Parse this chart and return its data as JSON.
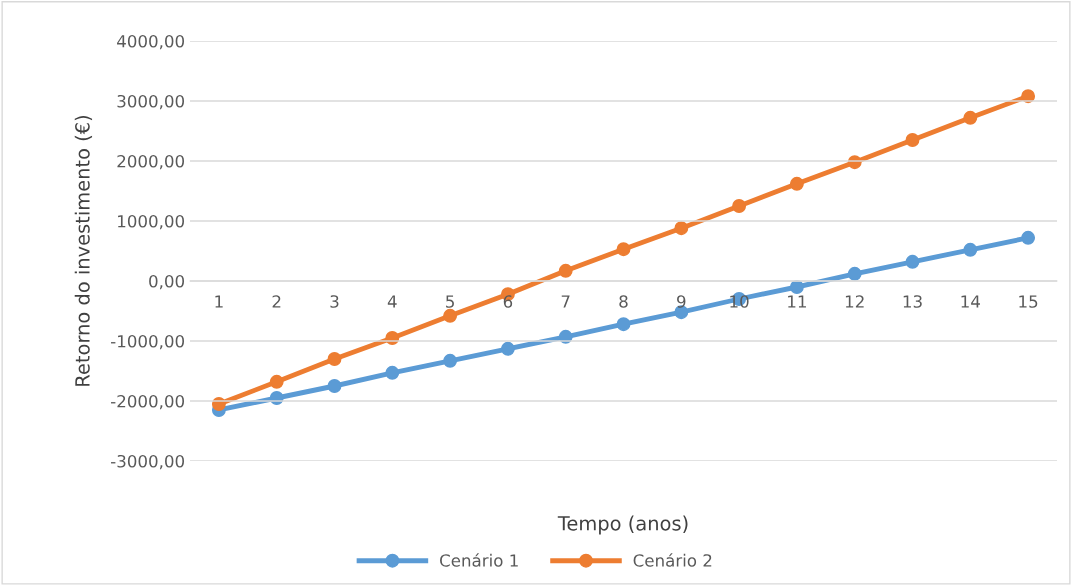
{
  "chart_data": {
    "type": "line",
    "xlabel": "Tempo (anos)",
    "ylabel": "Retorno do investimento (€)",
    "categories": [
      "1",
      "2",
      "3",
      "4",
      "5",
      "6",
      "7",
      "8",
      "9",
      "10",
      "11",
      "12",
      "13",
      "14",
      "15"
    ],
    "series": [
      {
        "name": "Cenário 1",
        "color": "#5b9bd5",
        "values": [
          -2150,
          -1950,
          -1750,
          -1530,
          -1330,
          -1130,
          -930,
          -720,
          -520,
          -300,
          -100,
          120,
          320,
          520,
          720
        ]
      },
      {
        "name": "Cenário 2",
        "color": "#ed7d31",
        "values": [
          -2050,
          -1680,
          -1300,
          -950,
          -580,
          -220,
          170,
          530,
          880,
          1250,
          1620,
          1980,
          2350,
          2720,
          3080
        ]
      }
    ],
    "ylim": [
      -3000,
      4000
    ],
    "yticks": [
      {
        "value": -3000,
        "label": "-3000,00"
      },
      {
        "value": -2000,
        "label": "-2000,00"
      },
      {
        "value": -1000,
        "label": "-1000,00"
      },
      {
        "value": 0,
        "label": "0,00"
      },
      {
        "value": 1000,
        "label": "1000,00"
      },
      {
        "value": 2000,
        "label": "2000,00"
      },
      {
        "value": 3000,
        "label": "3000,00"
      },
      {
        "value": 4000,
        "label": "4000,00"
      }
    ],
    "grid": "y",
    "legend": "bottom",
    "marker": "circle",
    "line_style": "solid"
  }
}
